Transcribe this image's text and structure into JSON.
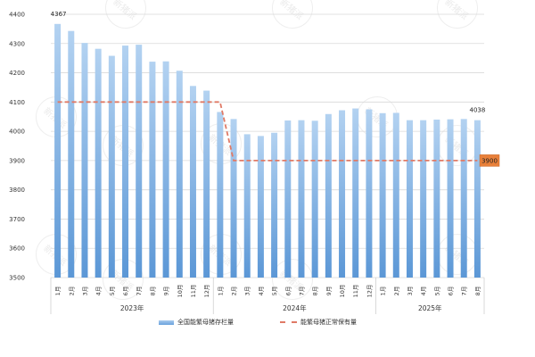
{
  "chart_data": {
    "type": "bar",
    "title": "",
    "xlabel": "",
    "ylabel": "",
    "ylim": [
      3500,
      4400
    ],
    "yticks": [
      3500,
      3600,
      3700,
      3800,
      3900,
      4000,
      4100,
      4200,
      4300,
      4400
    ],
    "grid": true,
    "legend_position": "bottom",
    "groups": [
      {
        "label": "2023年",
        "months": [
          "1月",
          "2月",
          "3月",
          "4月",
          "5月",
          "6月",
          "7月",
          "8月",
          "9月",
          "10月",
          "11月",
          "12月"
        ]
      },
      {
        "label": "2024年",
        "months": [
          "1月",
          "2月",
          "3月",
          "4月",
          "5月",
          "6月",
          "7月",
          "8月",
          "9月",
          "10月",
          "11月",
          "12月"
        ]
      },
      {
        "label": "2025年",
        "months": [
          "1月",
          "2月",
          "3月",
          "4月",
          "5月",
          "6月",
          "7月",
          "8月"
        ]
      }
    ],
    "categories": [
      "2023-1月",
      "2023-2月",
      "2023-3月",
      "2023-4月",
      "2023-5月",
      "2023-6月",
      "2023-7月",
      "2023-8月",
      "2023-9月",
      "2023-10月",
      "2023-11月",
      "2023-12月",
      "2024-1月",
      "2024-2月",
      "2024-3月",
      "2024-4月",
      "2024-5月",
      "2024-6月",
      "2024-7月",
      "2024-8月",
      "2024-9月",
      "2024-10月",
      "2024-11月",
      "2024-12月",
      "2025-1月",
      "2025-2月",
      "2025-3月",
      "2025-4月",
      "2025-5月",
      "2025-6月",
      "2025-7月",
      "2025-8月"
    ],
    "series": [
      {
        "name": "全国能繁母猪存栏量",
        "type": "bar",
        "color": "#5b9bd5",
        "values": [
          4367,
          4343,
          4302,
          4282,
          4258,
          4293,
          4296,
          4238,
          4239,
          4207,
          4155,
          4139,
          4066,
          4042,
          3990,
          3984,
          3995,
          4037,
          4038,
          4036,
          4059,
          4072,
          4078,
          4075,
          4062,
          4063,
          4038,
          4038,
          4040,
          4041,
          4042,
          4038
        ]
      },
      {
        "name": "能繁母猪正常保有量",
        "type": "line",
        "style": "dashed",
        "color": "#e07a66",
        "values": [
          4100,
          4100,
          4100,
          4100,
          4100,
          4100,
          4100,
          4100,
          4100,
          4100,
          4100,
          4100,
          4100,
          3900,
          3900,
          3900,
          3900,
          3900,
          3900,
          3900,
          3900,
          3900,
          3900,
          3900,
          3900,
          3900,
          3900,
          3900,
          3900,
          3900,
          3900,
          3900
        ]
      }
    ],
    "annotations": [
      {
        "text": "4367",
        "target": "2023-1月"
      },
      {
        "text": "4038",
        "target": "2025-8月"
      },
      {
        "text": "3900",
        "target": "能繁母猪正常保有量",
        "style": "orange-box",
        "color": "#e8803a"
      }
    ]
  },
  "legend": {
    "bar_label": "全国能繁母猪存栏量",
    "line_label": "能繁母猪正常保有量"
  },
  "watermark": "新猪派"
}
